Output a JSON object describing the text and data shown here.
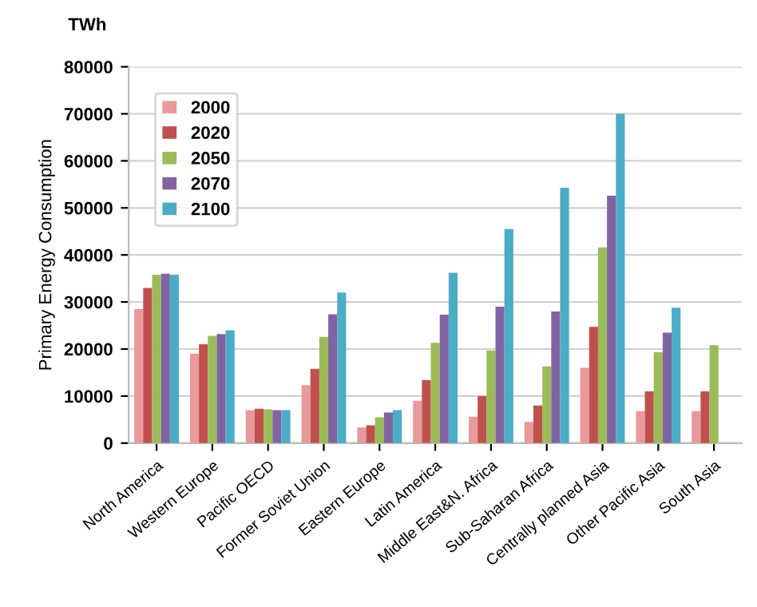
{
  "chart_data": {
    "type": "bar",
    "ylabel": "Primary Energy Consumption",
    "annotations": [
      "TWh"
    ],
    "categories": [
      "North America",
      "Western Europe",
      "Pacific OECD",
      "Former Soviet Union",
      "Eastern Europe",
      "Latin America",
      "Middle East&N. Africa",
      "Sub-Saharan Africa",
      "Centrally planned Asia",
      "Other Pacific Asia",
      "South Asia"
    ],
    "series": [
      {
        "name": "2000",
        "color": "#e8999a",
        "values": [
          28500,
          19000,
          7000,
          12300,
          3300,
          9000,
          5600,
          4500,
          16000,
          6800,
          6800
        ]
      },
      {
        "name": "2020",
        "color": "#c0504d",
        "values": [
          33000,
          21000,
          7300,
          15800,
          3800,
          13400,
          10000,
          8000,
          24700,
          11000,
          11000
        ]
      },
      {
        "name": "2050",
        "color": "#9bbb59",
        "values": [
          35800,
          22800,
          7200,
          22600,
          5500,
          21300,
          19700,
          16300,
          41600,
          19300,
          20800
        ]
      },
      {
        "name": "2070",
        "color": "#8064a2",
        "values": [
          36000,
          23200,
          7000,
          27400,
          6500,
          27300,
          29000,
          28000,
          52600,
          23500,
          null
        ]
      },
      {
        "name": "2100",
        "color": "#4bacc6",
        "values": [
          35800,
          24000,
          7000,
          32000,
          7000,
          36200,
          45500,
          54300,
          70000,
          28800,
          null
        ]
      }
    ],
    "ylim": [
      0,
      80000
    ],
    "yticks": [
      0,
      10000,
      20000,
      30000,
      40000,
      50000,
      60000,
      70000,
      80000
    ],
    "grid": "y",
    "legend": "top left"
  }
}
